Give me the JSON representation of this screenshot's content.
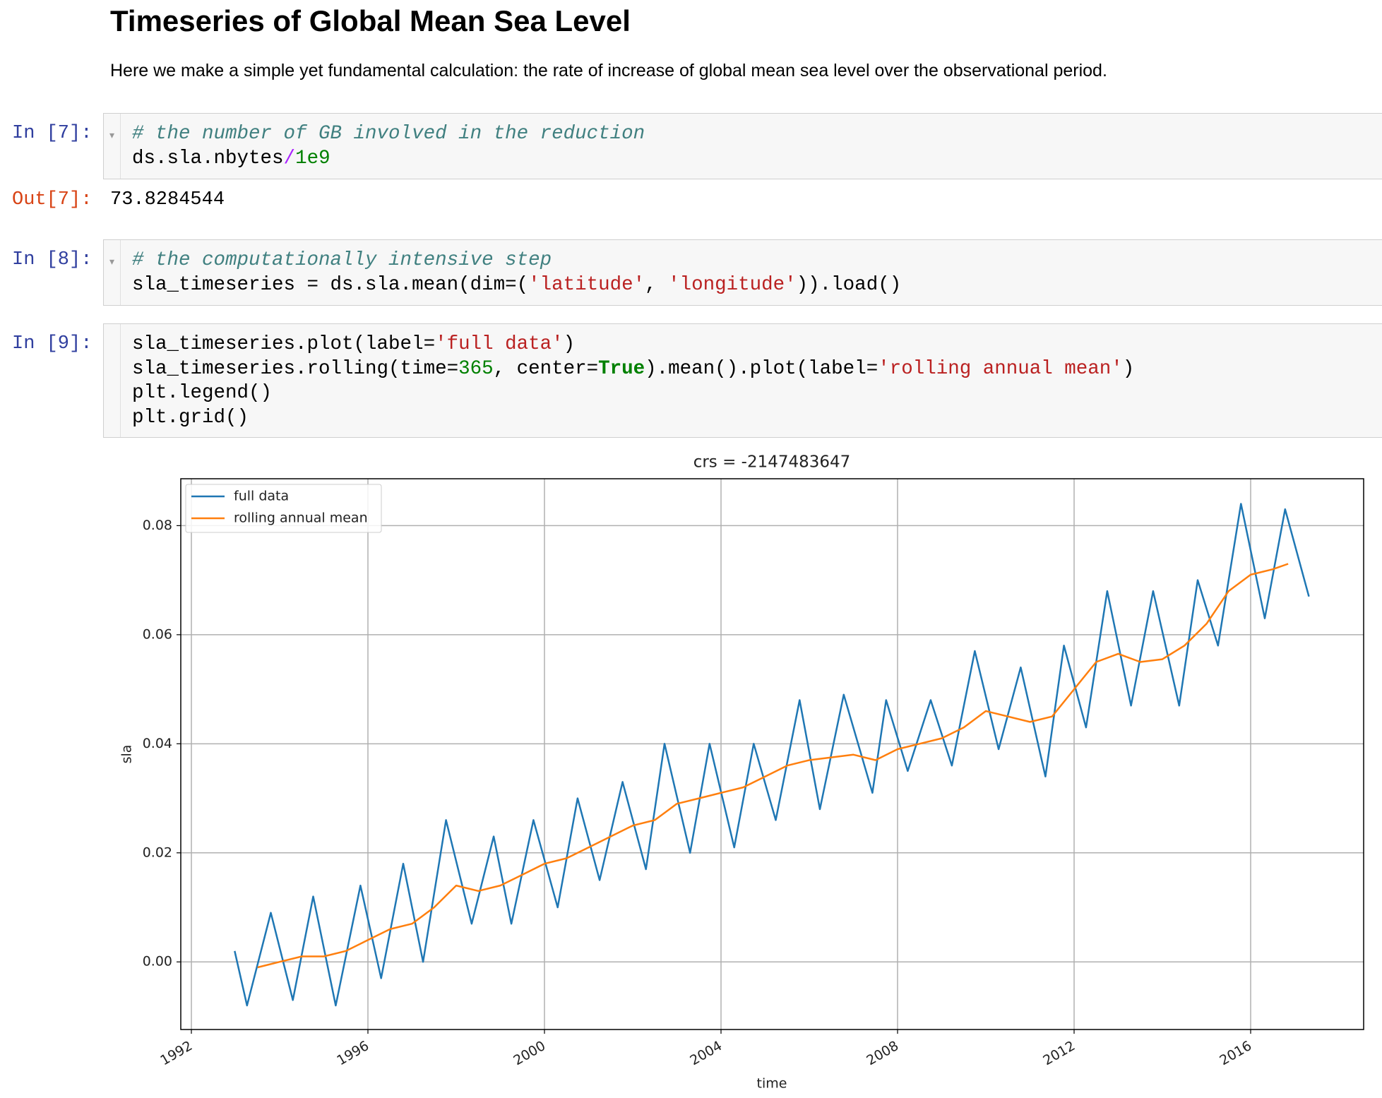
{
  "header": {
    "title": "Timeseries of Global Mean Sea Level",
    "text": "Here we make a simple yet fundamental calculation: the rate of increase of global mean sea level over the observational period."
  },
  "cells": [
    {
      "prompt": "In [7]:",
      "code": [
        [
          {
            "text": "# the number of GB involved in the reduction",
            "color": "#408080"
          }
        ],
        [
          {
            "text": "ds.sla.nbytes",
            "color": "#000000"
          },
          {
            "text": "/",
            "color": "#aa22ff"
          },
          {
            "text": "1e9",
            "color": "#008000"
          }
        ]
      ]
    },
    {
      "prompt": "Out[7]:",
      "output": "73.8284544"
    },
    {
      "prompt": "In [8]:",
      "code": [
        [
          {
            "text": "# the computationally intensive step",
            "color": "#408080"
          }
        ],
        [
          {
            "text": "sla_timeseries = ds.sla.mean(dim=(",
            "color": "#000000"
          },
          {
            "text": "'latitude'",
            "color": "#ba2121"
          },
          {
            "text": ", ",
            "color": "#000000"
          },
          {
            "text": "'longitude'",
            "color": "#ba2121"
          },
          {
            "text": ")).load()",
            "color": "#000000"
          }
        ]
      ]
    },
    {
      "prompt": "In [9]:",
      "code": [
        [
          {
            "text": "sla_timeseries.plot(label=",
            "color": "#000000"
          },
          {
            "text": "'full data'",
            "color": "#ba2121"
          },
          {
            "text": ")",
            "color": "#000000"
          }
        ],
        [
          {
            "text": "sla_timeseries.rolling(time=",
            "color": "#000000"
          },
          {
            "text": "365",
            "color": "#008000"
          },
          {
            "text": ", center=",
            "color": "#000000"
          },
          {
            "text": "True",
            "color": "#008000",
            "bold": true
          },
          {
            "text": ").mean().plot(label=",
            "color": "#000000"
          },
          {
            "text": "'rolling annual mean'",
            "color": "#ba2121"
          },
          {
            "text": ")",
            "color": "#000000"
          }
        ],
        [
          {
            "text": "plt.legend()",
            "color": "#000000"
          }
        ],
        [
          {
            "text": "plt.grid()",
            "color": "#000000"
          }
        ]
      ]
    }
  ],
  "chart_data": {
    "type": "line",
    "title": "crs = -2147483647",
    "x_label": "time",
    "y_label": "sla",
    "xlim": [
      1991.76,
      2018.56
    ],
    "xticks": [
      1992,
      1996,
      2000,
      2004,
      2008,
      2012,
      2016
    ],
    "ylim": [
      -0.0124,
      0.0886
    ],
    "yticks": [
      {
        "value": 0,
        "label": "0.00"
      },
      {
        "value": 0.02,
        "label": "0.02"
      },
      {
        "value": 0.04,
        "label": "0.04"
      },
      {
        "value": 0.06,
        "label": "0.06"
      },
      {
        "value": 0.08,
        "label": "0.08"
      }
    ],
    "grid": true,
    "legend": "upper left",
    "series": [
      {
        "name": "full data",
        "color": "#1f77b4",
        "x": [
          1992.98,
          1993.26,
          1993.8,
          1994.3,
          1994.76,
          1995.27,
          1995.83,
          1996.3,
          1996.8,
          1997.25,
          1997.77,
          1998.35,
          1998.85,
          1999.25,
          1999.75,
          2000.3,
          2000.75,
          2001.25,
          2001.77,
          2002.3,
          2002.72,
          2003.3,
          2003.74,
          2004.3,
          2004.74,
          2005.24,
          2005.78,
          2006.24,
          2006.78,
          2007.43,
          2007.74,
          2008.23,
          2008.75,
          2009.23,
          2009.75,
          2010.29,
          2010.79,
          2011.35,
          2011.77,
          2012.27,
          2012.75,
          2013.29,
          2013.79,
          2014.38,
          2014.8,
          2015.26,
          2015.78,
          2016.32,
          2016.78,
          2017.32
        ],
        "values": [
          0.002,
          -0.008,
          0.009,
          -0.007,
          0.012,
          -0.008,
          0.014,
          -0.003,
          0.018,
          0.0,
          0.026,
          0.007,
          0.023,
          0.007,
          0.026,
          0.01,
          0.03,
          0.015,
          0.033,
          0.017,
          0.04,
          0.02,
          0.04,
          0.021,
          0.04,
          0.026,
          0.048,
          0.028,
          0.049,
          0.031,
          0.048,
          0.035,
          0.048,
          0.036,
          0.057,
          0.039,
          0.054,
          0.034,
          0.058,
          0.043,
          0.068,
          0.047,
          0.068,
          0.047,
          0.07,
          0.058,
          0.084,
          0.063,
          0.083,
          0.067
        ]
      },
      {
        "name": "rolling annual mean",
        "color": "#ff7f0e",
        "x": [
          1993.5,
          1994,
          1994.5,
          1995,
          1995.5,
          1996,
          1996.5,
          1997,
          1997.5,
          1998,
          1998.5,
          1999,
          1999.5,
          2000,
          2000.5,
          2001,
          2001.5,
          2002,
          2002.5,
          2003,
          2003.5,
          2004,
          2004.5,
          2005,
          2005.5,
          2006,
          2006.5,
          2007,
          2007.5,
          2008,
          2008.5,
          2009,
          2009.5,
          2010,
          2010.5,
          2011,
          2011.5,
          2012,
          2012.5,
          2013,
          2013.5,
          2014,
          2014.5,
          2015,
          2015.5,
          2016,
          2016.5,
          2016.85
        ],
        "values": [
          -0.001,
          0.0,
          0.001,
          0.001,
          0.002,
          0.004,
          0.006,
          0.007,
          0.01,
          0.014,
          0.013,
          0.014,
          0.016,
          0.018,
          0.019,
          0.021,
          0.023,
          0.025,
          0.026,
          0.029,
          0.03,
          0.031,
          0.032,
          0.034,
          0.036,
          0.037,
          0.0375,
          0.038,
          0.037,
          0.039,
          0.04,
          0.041,
          0.043,
          0.046,
          0.045,
          0.044,
          0.045,
          0.05,
          0.055,
          0.0565,
          0.055,
          0.0555,
          0.058,
          0.062,
          0.068,
          0.071,
          0.072,
          0.073
        ]
      }
    ]
  }
}
